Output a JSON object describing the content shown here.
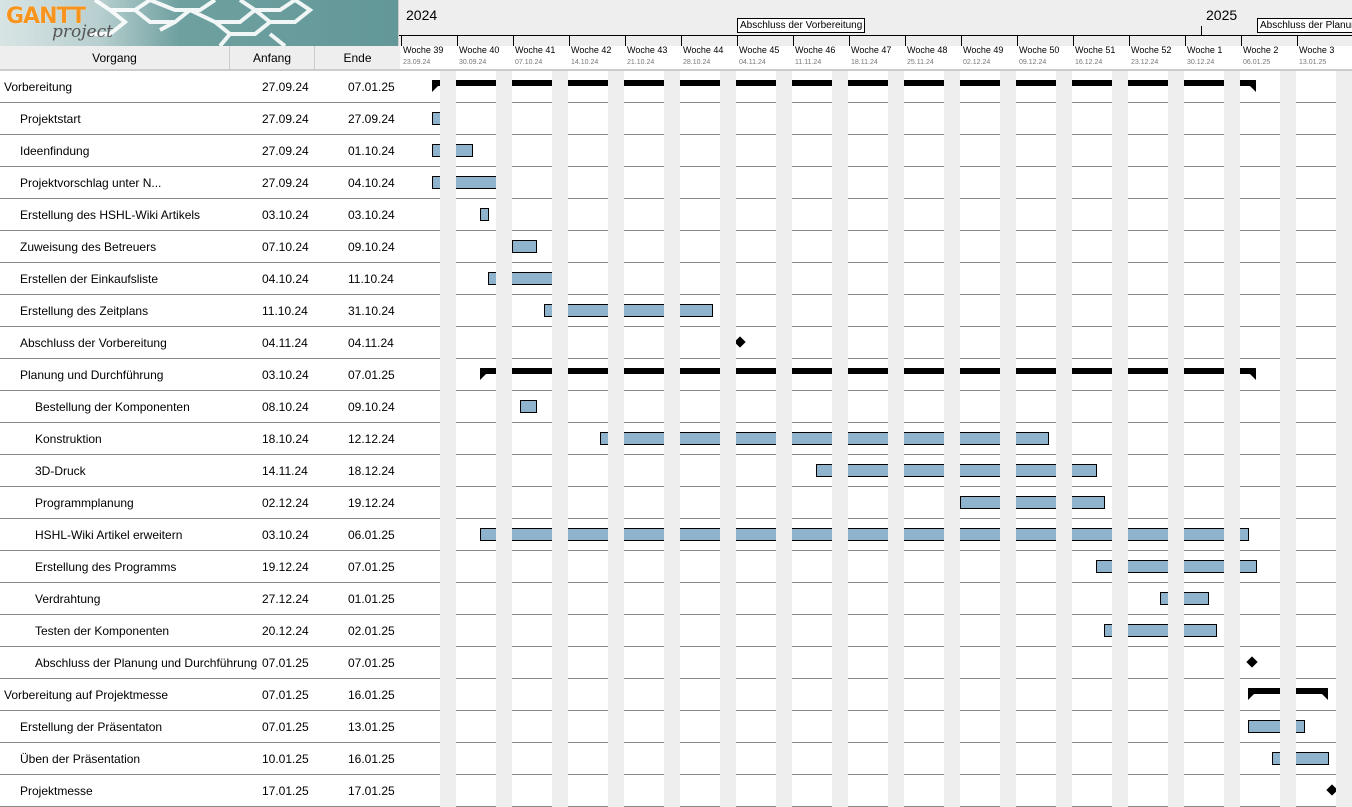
{
  "app": {
    "logo_text": "GANTT project"
  },
  "columns": {
    "name": "Vorgang",
    "start": "Anfang",
    "end": "Ende"
  },
  "timeline": {
    "years": [
      {
        "label": "2024",
        "date": "23.09.24"
      },
      {
        "label": "2025",
        "date": "01.01.25"
      }
    ],
    "milestone_labels": [
      {
        "label": "Abschluss der Vorbereitung",
        "date": "04.11.24"
      },
      {
        "label": "Abschluss der Planun",
        "date": "07.01.25"
      }
    ],
    "weeks": [
      {
        "label": "Woche 39",
        "date": "23.09.24"
      },
      {
        "label": "Woche 40",
        "date": "30.09.24"
      },
      {
        "label": "Woche 41",
        "date": "07.10.24"
      },
      {
        "label": "Woche 42",
        "date": "14.10.24"
      },
      {
        "label": "Woche 43",
        "date": "21.10.24"
      },
      {
        "label": "Woche 44",
        "date": "28.10.24"
      },
      {
        "label": "Woche 45",
        "date": "04.11.24"
      },
      {
        "label": "Woche 46",
        "date": "11.11.24"
      },
      {
        "label": "Woche 47",
        "date": "18.11.24"
      },
      {
        "label": "Woche 48",
        "date": "25.11.24"
      },
      {
        "label": "Woche 49",
        "date": "02.12.24"
      },
      {
        "label": "Woche 50",
        "date": "09.12.24"
      },
      {
        "label": "Woche 51",
        "date": "16.12.24"
      },
      {
        "label": "Woche 52",
        "date": "23.12.24"
      },
      {
        "label": "Woche 1",
        "date": "30.12.24"
      },
      {
        "label": "Woche 2",
        "date": "06.01.25"
      },
      {
        "label": "Woche 3",
        "date": "13.01.25"
      }
    ]
  },
  "colors": {
    "task_bar": "#8db4cc",
    "summary": "#000000",
    "weekend": "#eeeeee"
  },
  "tasks": [
    {
      "name": "Vorbereitung",
      "start": "27.09.24",
      "end": "07.01.25",
      "type": "summary",
      "level": 0
    },
    {
      "name": "Projektstart",
      "start": "27.09.24",
      "end": "27.09.24",
      "type": "task",
      "level": 1
    },
    {
      "name": "Ideenfindung",
      "start": "27.09.24",
      "end": "01.10.24",
      "type": "task",
      "level": 1
    },
    {
      "name": "Projektvorschlag unter N...",
      "start": "27.09.24",
      "end": "04.10.24",
      "type": "task",
      "level": 1
    },
    {
      "name": "Erstellung des HSHL-Wiki Artikels",
      "start": "03.10.24",
      "end": "03.10.24",
      "type": "task",
      "level": 1
    },
    {
      "name": "Zuweisung des Betreuers",
      "start": "07.10.24",
      "end": "09.10.24",
      "type": "task",
      "level": 1
    },
    {
      "name": "Erstellen der Einkaufsliste",
      "start": "04.10.24",
      "end": "11.10.24",
      "type": "task",
      "level": 1
    },
    {
      "name": "Erstellung des Zeitplans",
      "start": "11.10.24",
      "end": "31.10.24",
      "type": "task",
      "level": 1
    },
    {
      "name": "Abschluss der Vorbereitung",
      "start": "04.11.24",
      "end": "04.11.24",
      "type": "milestone",
      "level": 1
    },
    {
      "name": "Planung und Durchführung",
      "start": "03.10.24",
      "end": "07.01.25",
      "type": "summary",
      "level": 1
    },
    {
      "name": "Bestellung der Komponenten",
      "start": "08.10.24",
      "end": "09.10.24",
      "type": "task",
      "level": 2
    },
    {
      "name": "Konstruktion",
      "start": "18.10.24",
      "end": "12.12.24",
      "type": "task",
      "level": 2
    },
    {
      "name": "3D-Druck",
      "start": "14.11.24",
      "end": "18.12.24",
      "type": "task",
      "level": 2
    },
    {
      "name": "Programmplanung",
      "start": "02.12.24",
      "end": "19.12.24",
      "type": "task",
      "level": 2
    },
    {
      "name": "HSHL-Wiki Artikel erweitern",
      "start": "03.10.24",
      "end": "06.01.25",
      "type": "task",
      "level": 2
    },
    {
      "name": "Erstellung des Programms",
      "start": "19.12.24",
      "end": "07.01.25",
      "type": "task",
      "level": 2
    },
    {
      "name": "Verdrahtung",
      "start": "27.12.24",
      "end": "01.01.25",
      "type": "task",
      "level": 2
    },
    {
      "name": "Testen der Komponenten",
      "start": "20.12.24",
      "end": "02.01.25",
      "type": "task",
      "level": 2
    },
    {
      "name": "Abschluss der Planung und Durchführung",
      "start": "07.01.25",
      "end": "07.01.25",
      "type": "milestone",
      "level": 2
    },
    {
      "name": "Vorbereitung auf Projektmesse",
      "start": "07.01.25",
      "end": "16.01.25",
      "type": "summary",
      "level": 0
    },
    {
      "name": "Erstellung der Präsentaton",
      "start": "07.01.25",
      "end": "13.01.25",
      "type": "task",
      "level": 1
    },
    {
      "name": "Üben der Präsentation",
      "start": "10.01.25",
      "end": "16.01.25",
      "type": "task",
      "level": 1
    },
    {
      "name": "Projektmesse",
      "start": "17.01.25",
      "end": "17.01.25",
      "type": "milestone",
      "level": 1
    }
  ]
}
